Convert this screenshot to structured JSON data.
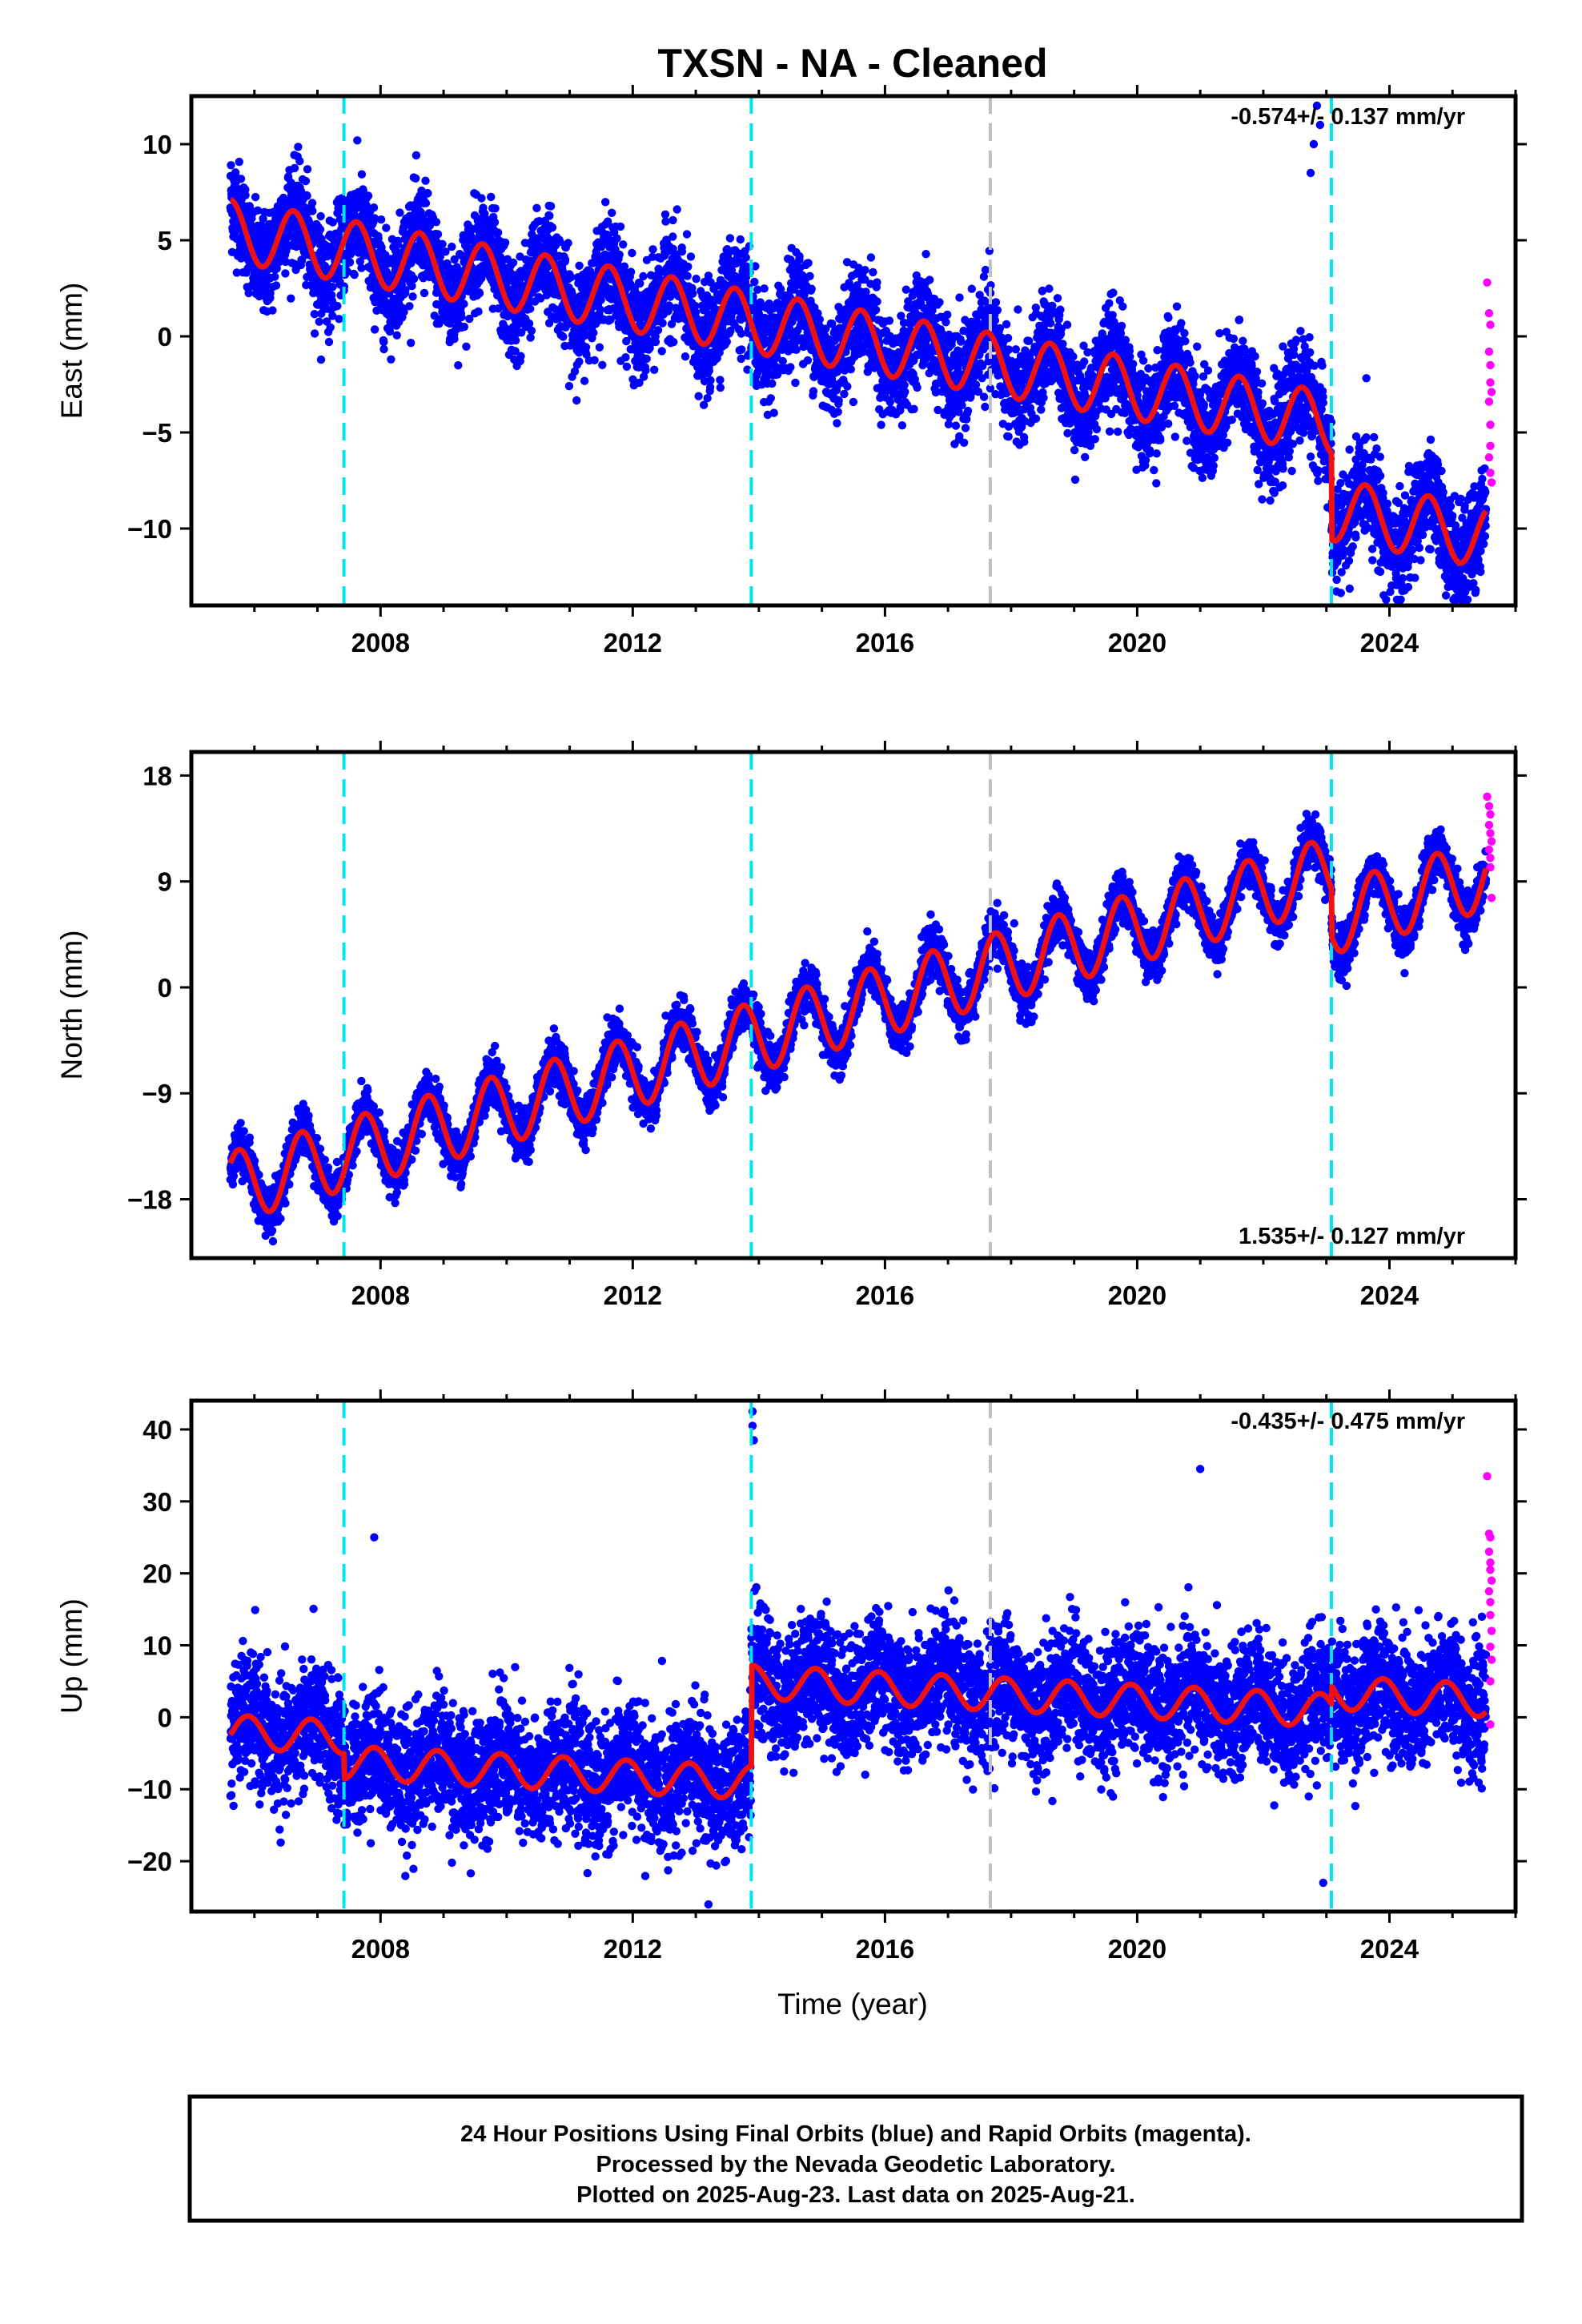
{
  "figure": {
    "title": "TXSN  - NA - Cleaned",
    "xlabel": "Time (year)",
    "footer": [
      "24 Hour Positions Using Final Orbits (blue) and Rapid Orbits (magenta).",
      "Processed by the Nevada Geodetic Laboratory.",
      "Plotted on 2025-Aug-23. Last data on 2025-Aug-21."
    ]
  },
  "colors": {
    "final_orbits": "#0000ff",
    "rapid_orbits": "#ff00ff",
    "model": "#ee1111",
    "equipment_change": "#00e5ee",
    "other_event": "#c0c0c0"
  },
  "chart_data": [
    {
      "type": "scatter",
      "name": "east",
      "ylabel": "East (mm)",
      "rate_text": "-0.574+/- 0.137 mm/yr",
      "rate_position": "top-right",
      "xlim": [
        2005.0,
        2026.0
      ],
      "ylim": [
        -14,
        12.5
      ],
      "x_ticks": [
        2008,
        2012,
        2016,
        2020,
        2024
      ],
      "y_ticks": [
        {
          "v": 10,
          "label": "10"
        },
        {
          "v": 5,
          "label": "5"
        },
        {
          "v": 0,
          "label": "0"
        },
        {
          "v": -5,
          "label": "−5"
        },
        {
          "v": -10,
          "label": "−10"
        }
      ],
      "steps": [
        {
          "x": 2007.42,
          "kind": "equipment"
        },
        {
          "x": 2013.88,
          "kind": "equipment"
        },
        {
          "x": 2017.67,
          "kind": "other"
        },
        {
          "x": 2023.08,
          "kind": "equipment"
        }
      ],
      "model": {
        "t0": 2005.62,
        "offset": 5.5,
        "slope": -0.574,
        "amplitude": 1.6,
        "phase": 2005.62,
        "jumps": [
          {
            "x": 2023.08,
            "dy": -4.5
          }
        ]
      },
      "scatter_sd": 1.3,
      "spikes": [
        {
          "x": 2022.85,
          "y": 12
        },
        {
          "x": 2022.8,
          "y": 10
        },
        {
          "x": 2022.75,
          "y": 8.5
        },
        {
          "x": 2022.9,
          "y": 11
        }
      ],
      "rapid_points": [
        [
          2025.55,
          2.8
        ],
        [
          2025.58,
          1.2
        ],
        [
          2025.6,
          0.6
        ],
        [
          2025.58,
          -0.8
        ],
        [
          2025.6,
          -1.5
        ],
        [
          2025.6,
          -2.4
        ],
        [
          2025.62,
          -2.9
        ],
        [
          2025.58,
          -3.4
        ],
        [
          2025.6,
          -4.6
        ],
        [
          2025.6,
          -5.7
        ],
        [
          2025.58,
          -6.3
        ],
        [
          2025.6,
          -7.1
        ],
        [
          2025.62,
          -7.6
        ]
      ]
    },
    {
      "type": "scatter",
      "name": "north",
      "ylabel": "North (mm)",
      "rate_text": "1.535+/- 0.127 mm/yr",
      "rate_position": "bottom-right",
      "xlim": [
        2005.0,
        2026.0
      ],
      "ylim": [
        -23,
        20
      ],
      "x_ticks": [
        2008,
        2012,
        2016,
        2020,
        2024
      ],
      "y_ticks": [
        {
          "v": 18,
          "label": "18"
        },
        {
          "v": 9,
          "label": "9"
        },
        {
          "v": 0,
          "label": "0"
        },
        {
          "v": -9,
          "label": "−9"
        },
        {
          "v": -18,
          "label": "−18"
        }
      ],
      "steps": [
        {
          "x": 2007.42,
          "kind": "equipment"
        },
        {
          "x": 2013.88,
          "kind": "equipment"
        },
        {
          "x": 2017.67,
          "kind": "other"
        },
        {
          "x": 2023.08,
          "kind": "equipment"
        }
      ],
      "model": {
        "t0": 2005.62,
        "offset": -17.0,
        "slope": 1.535,
        "amplitude": 3.0,
        "phase": 2005.75,
        "jumps": [
          {
            "x": 2023.08,
            "dy": -4.0
          }
        ]
      },
      "scatter_sd": 1.0,
      "spikes": [],
      "rapid_points": [
        [
          2025.55,
          16.2
        ],
        [
          2025.58,
          15.4
        ],
        [
          2025.6,
          14.7
        ],
        [
          2025.58,
          13.8
        ],
        [
          2025.6,
          13.1
        ],
        [
          2025.62,
          12.4
        ],
        [
          2025.58,
          11.7
        ],
        [
          2025.6,
          11.0
        ],
        [
          2025.6,
          10.2
        ],
        [
          2025.62,
          7.6
        ]
      ]
    },
    {
      "type": "scatter",
      "name": "up",
      "ylabel": "Up (mm)",
      "rate_text": "-0.435+/- 0.475 mm/yr",
      "rate_position": "top-right",
      "xlim": [
        2005.0,
        2026.0
      ],
      "ylim": [
        -27,
        44
      ],
      "x_ticks": [
        2008,
        2012,
        2016,
        2020,
        2024
      ],
      "y_ticks": [
        {
          "v": 40,
          "label": "40"
        },
        {
          "v": 30,
          "label": "30"
        },
        {
          "v": 20,
          "label": "20"
        },
        {
          "v": 10,
          "label": "10"
        },
        {
          "v": 0,
          "label": "0"
        },
        {
          "v": -10,
          "label": "−10"
        },
        {
          "v": -20,
          "label": "−20"
        }
      ],
      "steps": [
        {
          "x": 2007.42,
          "kind": "equipment"
        },
        {
          "x": 2013.88,
          "kind": "equipment"
        },
        {
          "x": 2017.67,
          "kind": "other"
        },
        {
          "x": 2023.08,
          "kind": "equipment"
        }
      ],
      "model": {
        "t0": 2005.62,
        "offset": -2.0,
        "slope": -0.435,
        "amplitude": 2.3,
        "phase": 2005.9,
        "jumps": [
          {
            "x": 2007.42,
            "dy": -3.5
          },
          {
            "x": 2013.88,
            "dy": 14.0
          },
          {
            "x": 2023.08,
            "dy": 2.5
          }
        ]
      },
      "scatter_sd": 4.3,
      "spikes": [
        {
          "x": 2013.9,
          "y": 42.5
        },
        {
          "x": 2013.9,
          "y": 40.5
        },
        {
          "x": 2013.92,
          "y": 38.5
        },
        {
          "x": 2021.0,
          "y": 34.5
        },
        {
          "x": 2007.9,
          "y": 25.0
        },
        {
          "x": 2022.95,
          "y": -23.0
        },
        {
          "x": 2013.2,
          "y": -26.0
        }
      ],
      "rapid_points": [
        [
          2025.55,
          33.5
        ],
        [
          2025.58,
          25.5
        ],
        [
          2025.6,
          25.0
        ],
        [
          2025.58,
          23.0
        ],
        [
          2025.6,
          21.5
        ],
        [
          2025.6,
          20.5
        ],
        [
          2025.62,
          19.0
        ],
        [
          2025.58,
          17.5
        ],
        [
          2025.6,
          16.0
        ],
        [
          2025.6,
          14.2
        ],
        [
          2025.62,
          12.0
        ],
        [
          2025.6,
          9.8
        ],
        [
          2025.62,
          8.0
        ],
        [
          2025.6,
          5.0
        ],
        [
          2025.6,
          -1.0
        ]
      ]
    }
  ]
}
